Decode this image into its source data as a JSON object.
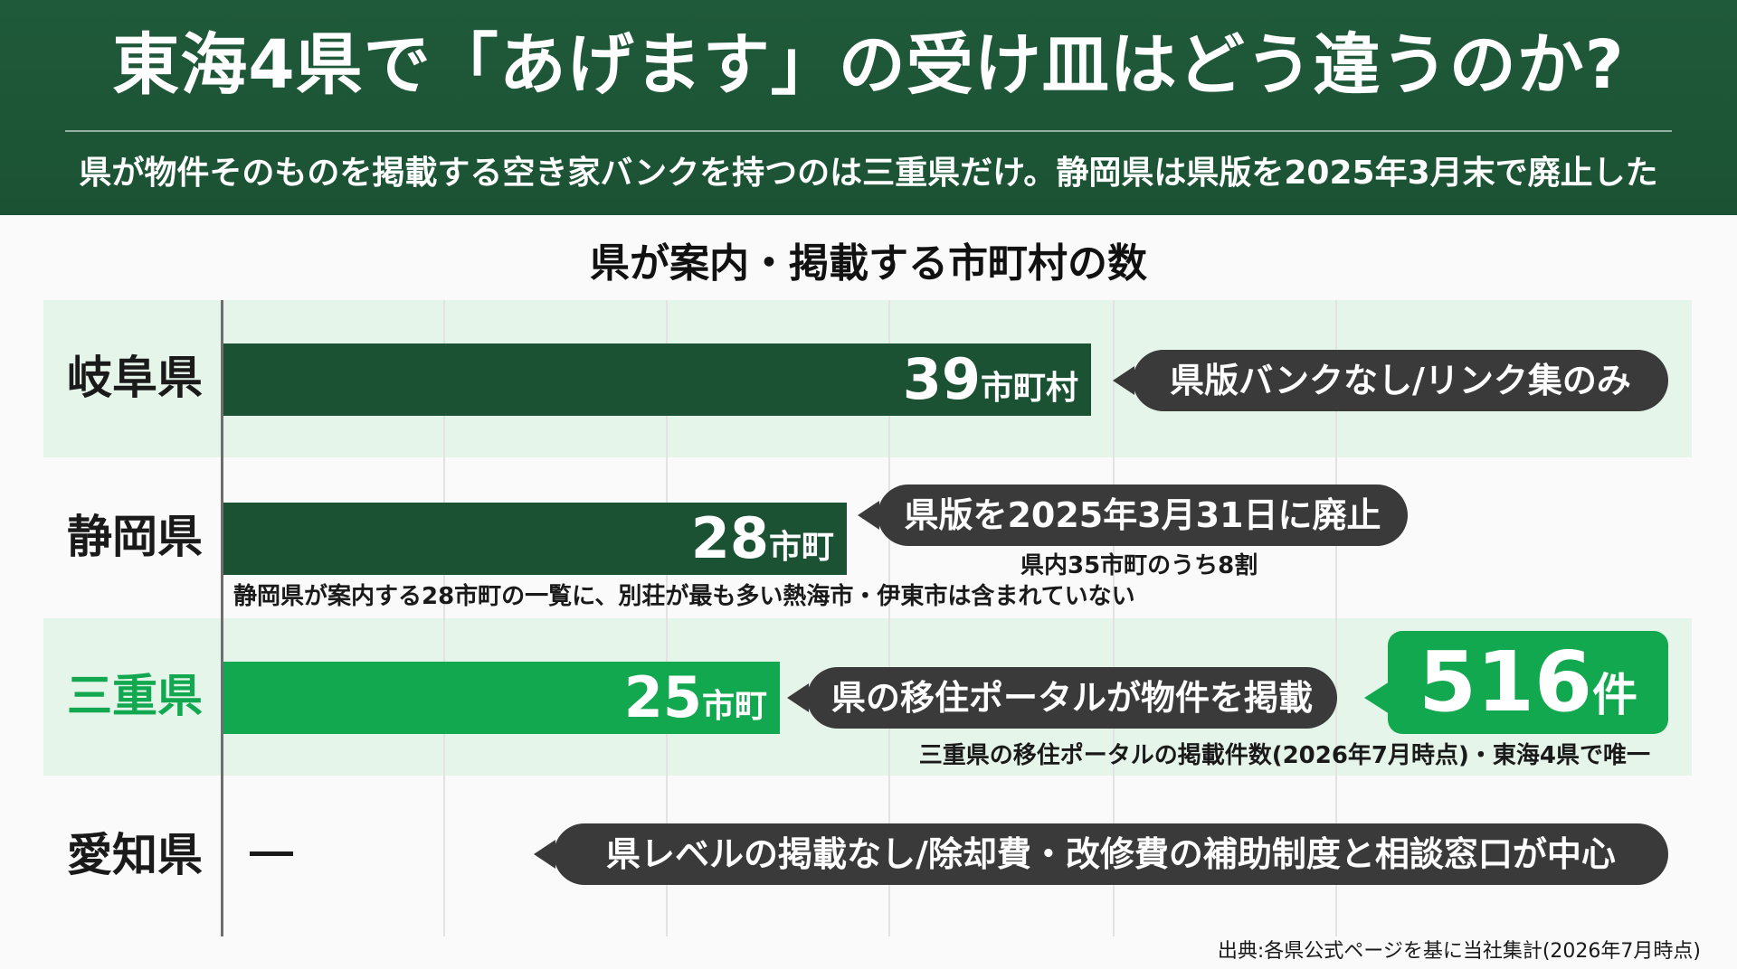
{
  "header": {
    "title": "東海4県で「あげます」の受け皿はどう違うのか?",
    "subtitle": "県が物件そのものを掲載する空き家バンクを持つのは三重県だけ。静岡県は県版を2025年3月末で廃止した"
  },
  "colors": {
    "header_bg": "#1f5a3a",
    "bar_dark": "#1b5234",
    "bar_highlight": "#12a84f",
    "band": "#e6f5ea",
    "pill": "#3a3a3a"
  },
  "chart_data": {
    "type": "bar",
    "orientation": "horizontal",
    "title": "県が案内・掲載する市町村の数",
    "categories": [
      "岐阜県",
      "静岡県",
      "三重県",
      "愛知県"
    ],
    "values": [
      39,
      28,
      25,
      null
    ],
    "value_labels": [
      {
        "num": "39",
        "unit": "市町村"
      },
      {
        "num": "28",
        "unit": "市町"
      },
      {
        "num": "25",
        "unit": "市町"
      },
      {
        "num": "ー",
        "unit": ""
      }
    ],
    "xlim": [
      0,
      50
    ],
    "grid": true,
    "annotations": {
      "gifu_callout": "県版バンクなし/リンク集のみ",
      "shizuoka_callout": "県版を2025年3月31日に廃止",
      "shizuoka_callout_note": "県内35市町のうち8割",
      "shizuoka_bar_note": "静岡県が案内する28市町の一覧に、別荘が最も多い熱海市・伊東市は含まれていない",
      "mie_callout": "県の移住ポータルが物件を掲載",
      "mie_badge_num": "516",
      "mie_badge_unit": "件",
      "mie_note": "三重県の移住ポータルの掲載件数(2026年7月時点)・東海4県で唯一",
      "aichi_callout": "県レベルの掲載なし/除却費・改修費の補助制度と相談窓口が中心"
    },
    "source": "出典:各県公式ページを基に当社集計(2026年7月時点)"
  }
}
